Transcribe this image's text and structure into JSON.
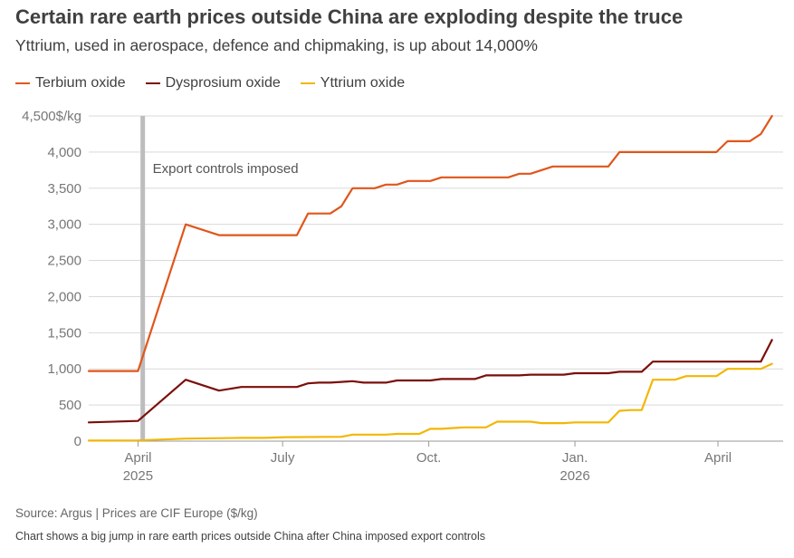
{
  "title": "Certain rare earth prices outside China are exploding despite the truce",
  "subtitle": "Yttrium, used in aerospace, defence and chipmaking, is up about 14,000%",
  "source": "Source: Argus | Prices are CIF Europe ($/kg)",
  "note": "Chart shows a big jump in rare earth prices outside China after China imposed export controls",
  "colors": {
    "terbium": "#e0561b",
    "dysprosium": "#7b0f0a",
    "yttrium": "#f2b705",
    "grid": "#d9d9d9",
    "axis_text": "#777777",
    "event_bar": "#bdbdbd"
  },
  "chart_data": {
    "type": "line",
    "ylabel": "$/kg",
    "ylim": [
      0,
      4500
    ],
    "y_ticks": [
      0,
      500,
      1000,
      1500,
      2000,
      2500,
      3000,
      3500,
      4000,
      4500
    ],
    "y_tick_labels": [
      "0",
      "500",
      "1,000",
      "1,500",
      "2,000",
      "2,500",
      "3,000",
      "3,500",
      "4,000",
      "4,500$/kg"
    ],
    "xlim": [
      "2025-03-01",
      "2026-05-12"
    ],
    "x_ticks": [
      {
        "date": "2025-04-01",
        "label": "April",
        "sublabel": "2025"
      },
      {
        "date": "2025-07-01",
        "label": "July",
        "sublabel": ""
      },
      {
        "date": "2025-10-01",
        "label": "Oct.",
        "sublabel": ""
      },
      {
        "date": "2026-01-01",
        "label": "Jan.",
        "sublabel": "2026"
      },
      {
        "date": "2026-04-01",
        "label": "April",
        "sublabel": ""
      }
    ],
    "grid": true,
    "legend_position": "top-left",
    "annotation": {
      "date": "2025-04-04",
      "text": "Export controls imposed"
    },
    "series": [
      {
        "name": "Terbium oxide",
        "color_key": "terbium",
        "points": [
          [
            "2025-03-01",
            970
          ],
          [
            "2025-04-01",
            970
          ],
          [
            "2025-05-01",
            3000
          ],
          [
            "2025-05-22",
            2850
          ],
          [
            "2025-06-19",
            2850
          ],
          [
            "2025-07-10",
            2850
          ],
          [
            "2025-07-17",
            3150
          ],
          [
            "2025-07-31",
            3150
          ],
          [
            "2025-08-07",
            3250
          ],
          [
            "2025-08-14",
            3500
          ],
          [
            "2025-08-28",
            3500
          ],
          [
            "2025-09-04",
            3550
          ],
          [
            "2025-09-11",
            3550
          ],
          [
            "2025-09-18",
            3600
          ],
          [
            "2025-10-02",
            3600
          ],
          [
            "2025-10-09",
            3650
          ],
          [
            "2025-11-20",
            3650
          ],
          [
            "2025-11-27",
            3700
          ],
          [
            "2025-12-04",
            3700
          ],
          [
            "2025-12-18",
            3800
          ],
          [
            "2026-01-22",
            3800
          ],
          [
            "2026-01-29",
            4000
          ],
          [
            "2026-03-31",
            4000
          ],
          [
            "2026-04-07",
            4150
          ],
          [
            "2026-04-21",
            4150
          ],
          [
            "2026-04-28",
            4250
          ],
          [
            "2026-05-05",
            4500
          ]
        ]
      },
      {
        "name": "Dysprosium oxide",
        "color_key": "dysprosium",
        "points": [
          [
            "2025-03-01",
            260
          ],
          [
            "2025-04-01",
            280
          ],
          [
            "2025-05-01",
            850
          ],
          [
            "2025-05-22",
            700
          ],
          [
            "2025-06-05",
            750
          ],
          [
            "2025-07-10",
            750
          ],
          [
            "2025-07-17",
            800
          ],
          [
            "2025-07-24",
            810
          ],
          [
            "2025-07-31",
            810
          ],
          [
            "2025-08-07",
            820
          ],
          [
            "2025-08-14",
            830
          ],
          [
            "2025-08-21",
            810
          ],
          [
            "2025-09-04",
            810
          ],
          [
            "2025-09-11",
            840
          ],
          [
            "2025-10-02",
            840
          ],
          [
            "2025-10-09",
            860
          ],
          [
            "2025-10-30",
            860
          ],
          [
            "2025-11-06",
            910
          ],
          [
            "2025-11-27",
            910
          ],
          [
            "2025-12-04",
            920
          ],
          [
            "2025-12-25",
            920
          ],
          [
            "2026-01-01",
            940
          ],
          [
            "2026-01-22",
            940
          ],
          [
            "2026-01-29",
            960
          ],
          [
            "2026-02-12",
            960
          ],
          [
            "2026-02-19",
            1100
          ],
          [
            "2026-04-28",
            1100
          ],
          [
            "2026-05-05",
            1400
          ]
        ]
      },
      {
        "name": "Yttrium oxide",
        "color_key": "yttrium",
        "points": [
          [
            "2025-03-01",
            8
          ],
          [
            "2025-04-01",
            10
          ],
          [
            "2025-05-01",
            35
          ],
          [
            "2025-06-05",
            45
          ],
          [
            "2025-06-19",
            45
          ],
          [
            "2025-06-26",
            50
          ],
          [
            "2025-07-03",
            55
          ],
          [
            "2025-08-07",
            60
          ],
          [
            "2025-08-14",
            90
          ],
          [
            "2025-09-04",
            90
          ],
          [
            "2025-09-11",
            100
          ],
          [
            "2025-09-25",
            100
          ],
          [
            "2025-10-02",
            170
          ],
          [
            "2025-10-09",
            170
          ],
          [
            "2025-10-23",
            190
          ],
          [
            "2025-11-06",
            190
          ],
          [
            "2025-11-13",
            270
          ],
          [
            "2025-12-04",
            270
          ],
          [
            "2025-12-11",
            250
          ],
          [
            "2025-12-25",
            250
          ],
          [
            "2026-01-01",
            260
          ],
          [
            "2026-01-22",
            260
          ],
          [
            "2026-01-29",
            420
          ],
          [
            "2026-02-05",
            430
          ],
          [
            "2026-02-12",
            430
          ],
          [
            "2026-02-19",
            850
          ],
          [
            "2026-03-05",
            850
          ],
          [
            "2026-03-12",
            900
          ],
          [
            "2026-03-31",
            900
          ],
          [
            "2026-04-07",
            1000
          ],
          [
            "2026-04-28",
            1000
          ],
          [
            "2026-05-05",
            1070
          ]
        ]
      }
    ]
  }
}
